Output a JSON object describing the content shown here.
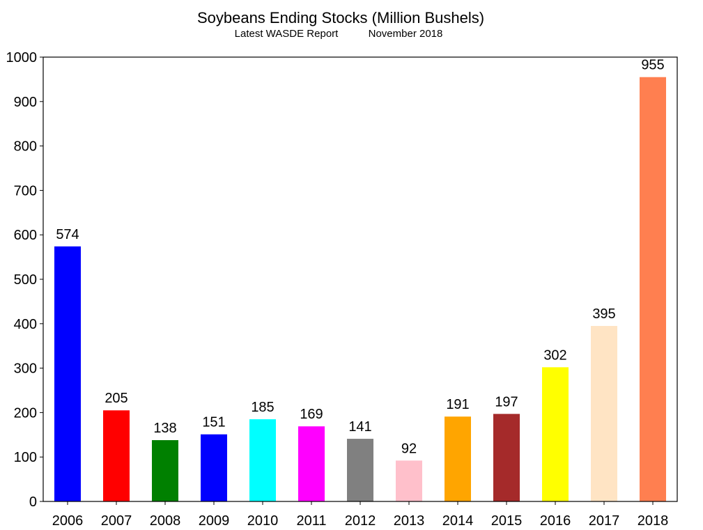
{
  "chart_data": {
    "type": "bar",
    "title": "Soybeans Ending Stocks (Million Bushels)",
    "subtitle_left": "Latest WASDE Report",
    "subtitle_right": "November 2018",
    "xlabel": "",
    "ylabel": "",
    "categories": [
      "2006",
      "2007",
      "2008",
      "2009",
      "2010",
      "2011",
      "2012",
      "2013",
      "2014",
      "2015",
      "2016",
      "2017",
      "2018"
    ],
    "values": [
      574,
      205,
      138,
      151,
      185,
      169,
      141,
      92,
      191,
      197,
      302,
      395,
      955
    ],
    "colors": [
      "#0000ff",
      "#ff0000",
      "#008000",
      "#0000ff",
      "#00ffff",
      "#ff00ff",
      "#808080",
      "#ffc0cb",
      "#ffa500",
      "#a52a2a",
      "#ffff00",
      "#ffe4c4",
      "#ff7f50"
    ],
    "ylim": [
      0,
      1000
    ],
    "yticks": [
      0,
      100,
      200,
      300,
      400,
      500,
      600,
      700,
      800,
      900,
      1000
    ],
    "grid": false,
    "legend": "none"
  }
}
